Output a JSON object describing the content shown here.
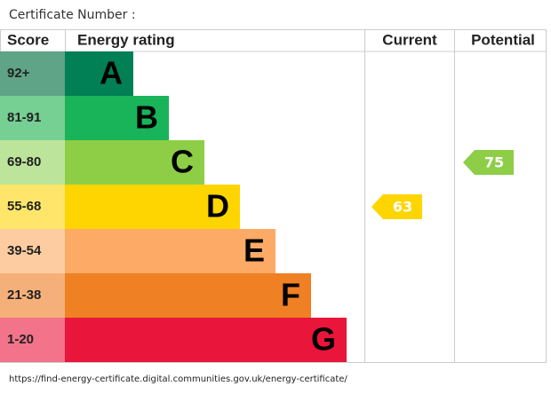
{
  "header": {
    "title": "Certificate Number :"
  },
  "table": {
    "columns": [
      "Score",
      "Energy rating",
      "Current",
      "Potential"
    ],
    "bands": [
      {
        "score": "92+",
        "letter": "A",
        "color": "#008054",
        "score_color": "#5fa486"
      },
      {
        "score": "81-91",
        "letter": "B",
        "color": "#19b459",
        "score_color": "#76cf93"
      },
      {
        "score": "69-80",
        "letter": "C",
        "color": "#8dce46",
        "score_color": "#bce49a"
      },
      {
        "score": "55-68",
        "letter": "D",
        "color": "#ffd500",
        "score_color": "#ffe66a"
      },
      {
        "score": "39-54",
        "letter": "E",
        "color": "#fcaa65",
        "score_color": "#fdcca0"
      },
      {
        "score": "21-38",
        "letter": "F",
        "color": "#ef8023",
        "score_color": "#f5b07a"
      },
      {
        "score": "1-20",
        "letter": "G",
        "color": "#e9153b",
        "score_color": "#f2738a"
      }
    ]
  },
  "current": 63,
  "potential": 75,
  "footer": {
    "url": "https://find-energy-certificate.digital.communities.gov.uk/energy-certificate/"
  }
}
